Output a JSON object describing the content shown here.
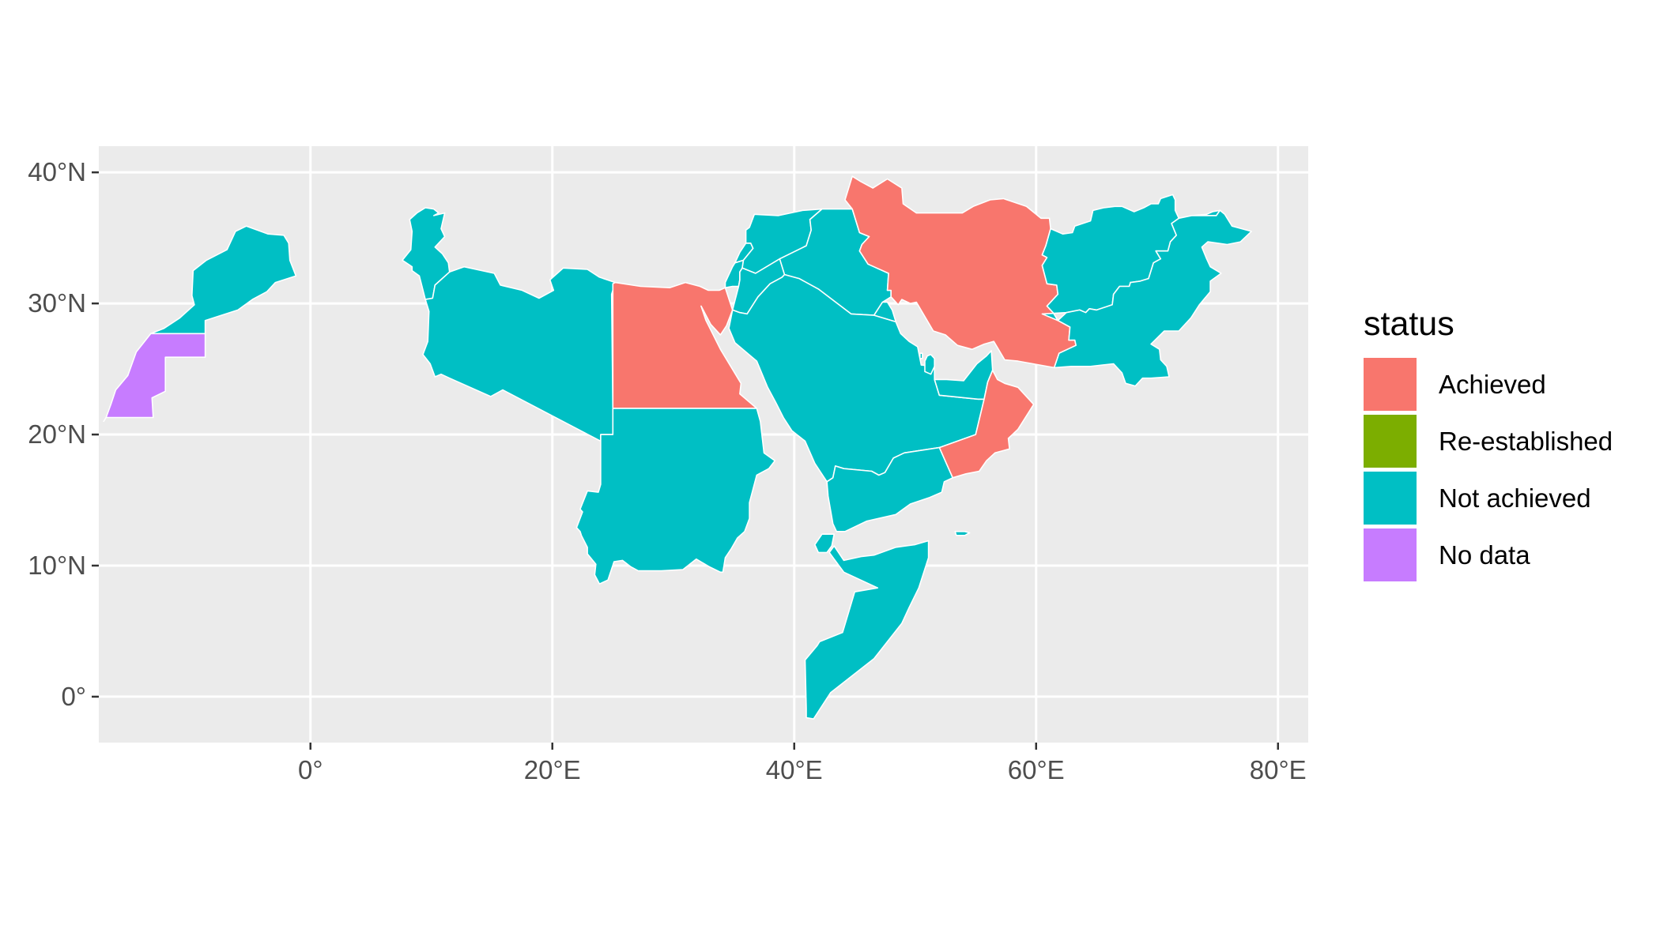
{
  "map": {
    "x_axis": {
      "label": "",
      "ticks": [
        {
          "value": 0,
          "label": "0°"
        },
        {
          "value": 20,
          "label": "20°E"
        },
        {
          "value": 40,
          "label": "40°E"
        },
        {
          "value": 60,
          "label": "60°E"
        },
        {
          "value": 80,
          "label": "80°E"
        }
      ]
    },
    "y_axis": {
      "label": "",
      "ticks": [
        {
          "value": 0,
          "label": "0°"
        },
        {
          "value": 10,
          "label": "10°N"
        },
        {
          "value": 20,
          "label": "20°N"
        },
        {
          "value": 30,
          "label": "30°N"
        },
        {
          "value": 40,
          "label": "40°N"
        }
      ]
    },
    "extent": {
      "lon": [
        -17.5,
        82.5
      ],
      "lat": [
        -3.5,
        42
      ]
    },
    "panel_background": "#ebebeb",
    "grid_color": "#ffffff",
    "legend": {
      "title": "status",
      "position": "right",
      "entries": [
        {
          "key": "achieved",
          "label": "Achieved",
          "color": "#f8766d"
        },
        {
          "key": "reestablished",
          "label": "Re-established",
          "color": "#7cae00"
        },
        {
          "key": "not_achieved",
          "label": "Not achieved",
          "color": "#00bfc4"
        },
        {
          "key": "no_data",
          "label": "No data",
          "color": "#c77cff"
        }
      ]
    },
    "regions": [
      {
        "name": "Morocco",
        "status": "not_achieved"
      },
      {
        "name": "Western Sahara",
        "status": "no_data"
      },
      {
        "name": "Tunisia",
        "status": "not_achieved"
      },
      {
        "name": "Libya",
        "status": "not_achieved"
      },
      {
        "name": "Egypt",
        "status": "achieved"
      },
      {
        "name": "Sudan",
        "status": "not_achieved"
      },
      {
        "name": "Palestine",
        "status": "no_data"
      },
      {
        "name": "Israel",
        "status": "not_achieved"
      },
      {
        "name": "Lebanon",
        "status": "not_achieved"
      },
      {
        "name": "Syria",
        "status": "not_achieved"
      },
      {
        "name": "Jordan",
        "status": "not_achieved"
      },
      {
        "name": "Iraq",
        "status": "not_achieved"
      },
      {
        "name": "Kuwait",
        "status": "not_achieved"
      },
      {
        "name": "Saudi Arabia",
        "status": "not_achieved"
      },
      {
        "name": "Bahrain",
        "status": "not_achieved"
      },
      {
        "name": "Qatar",
        "status": "not_achieved"
      },
      {
        "name": "United Arab Emirates",
        "status": "not_achieved"
      },
      {
        "name": "Oman",
        "status": "achieved"
      },
      {
        "name": "Yemen",
        "status": "not_achieved"
      },
      {
        "name": "Djibouti",
        "status": "not_achieved"
      },
      {
        "name": "Somalia",
        "status": "not_achieved"
      },
      {
        "name": "Socotra",
        "status": "not_achieved"
      },
      {
        "name": "Iran",
        "status": "achieved"
      },
      {
        "name": "Afghanistan",
        "status": "not_achieved"
      },
      {
        "name": "Pakistan",
        "status": "not_achieved"
      }
    ]
  }
}
